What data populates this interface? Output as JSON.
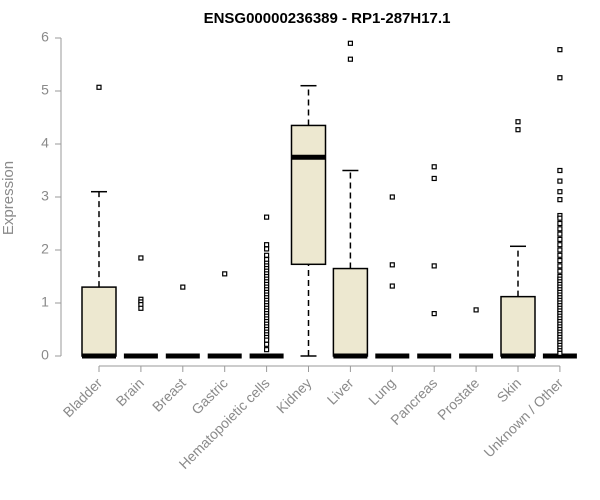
{
  "chart_data": {
    "type": "box",
    "title": "ENSG00000236389 - RP1-287H17.1",
    "ylabel": "Expression",
    "xlabel": "",
    "ylim": [
      0,
      6
    ],
    "yticks": [
      0,
      1,
      2,
      3,
      4,
      5,
      6
    ],
    "grid": false,
    "box_fill": "#ede8d0",
    "box_stroke": "#000000",
    "categories": [
      "Bladder",
      "Brain",
      "Breast",
      "Gastric",
      "Hematopoietic cells",
      "Kidney",
      "Liver",
      "Lung",
      "Pancreas",
      "Prostate",
      "Skin",
      "Unknown / Other"
    ],
    "boxes": [
      {
        "category": "Bladder",
        "whisker_low": 0,
        "q1": 0,
        "median": 0,
        "q3": 1.3,
        "whisker_high": 3.1,
        "outliers": [
          5.07
        ]
      },
      {
        "category": "Brain",
        "whisker_low": 0,
        "q1": 0,
        "median": 0,
        "q3": 0,
        "whisker_high": 0,
        "outliers": [
          1.85,
          1.07,
          1.02,
          0.97,
          0.9
        ]
      },
      {
        "category": "Breast",
        "whisker_low": 0,
        "q1": 0,
        "median": 0,
        "q3": 0,
        "whisker_high": 0,
        "outliers": [
          1.3
        ]
      },
      {
        "category": "Gastric",
        "whisker_low": 0,
        "q1": 0,
        "median": 0,
        "q3": 0,
        "whisker_high": 0,
        "outliers": [
          1.55
        ]
      },
      {
        "category": "Hematopoietic cells",
        "whisker_low": 0,
        "q1": 0,
        "median": 0,
        "q3": 0,
        "whisker_high": 0,
        "outliers": [
          2.62,
          2.1,
          2.02,
          1.9,
          1.82,
          1.75,
          1.7,
          1.65,
          1.6,
          1.55,
          1.5,
          1.45,
          1.4,
          1.35,
          1.3,
          1.25,
          1.2,
          1.15,
          1.1,
          1.05,
          1.0,
          0.95,
          0.9,
          0.85,
          0.8,
          0.75,
          0.7,
          0.65,
          0.6,
          0.55,
          0.5,
          0.45,
          0.4,
          0.35,
          0.3,
          0.22,
          0.12
        ]
      },
      {
        "category": "Kidney",
        "whisker_low": 0,
        "q1": 1.73,
        "median": 3.75,
        "q3": 4.35,
        "whisker_high": 5.1,
        "outliers": []
      },
      {
        "category": "Liver",
        "whisker_low": 0,
        "q1": 0,
        "median": 0,
        "q3": 1.65,
        "whisker_high": 3.5,
        "outliers": [
          5.9,
          5.6
        ]
      },
      {
        "category": "Lung",
        "whisker_low": 0,
        "q1": 0,
        "median": 0,
        "q3": 0,
        "whisker_high": 0,
        "outliers": [
          3.0,
          1.72,
          1.32
        ]
      },
      {
        "category": "Pancreas",
        "whisker_low": 0,
        "q1": 0,
        "median": 0,
        "q3": 0,
        "whisker_high": 0,
        "outliers": [
          3.57,
          3.35,
          1.7,
          0.8
        ]
      },
      {
        "category": "Prostate",
        "whisker_low": 0,
        "q1": 0,
        "median": 0,
        "q3": 0,
        "whisker_high": 0,
        "outliers": [
          0.87
        ]
      },
      {
        "category": "Skin",
        "whisker_low": 0,
        "q1": 0,
        "median": 0,
        "q3": 1.12,
        "whisker_high": 2.07,
        "outliers": [
          4.42,
          4.27
        ]
      },
      {
        "category": "Unknown / Other",
        "whisker_low": 0,
        "q1": 0,
        "median": 0,
        "q3": 0,
        "whisker_high": 0,
        "outliers": [
          5.78,
          5.25,
          3.5,
          3.3,
          3.1,
          2.95,
          2.65,
          2.6,
          2.5,
          2.4,
          2.3,
          2.2,
          2.1,
          2.0,
          1.9,
          1.8,
          1.7,
          1.6,
          1.5,
          1.45,
          1.4,
          1.35,
          1.3,
          1.25,
          1.2,
          1.15,
          1.1,
          1.05,
          1.0,
          0.95,
          0.9,
          0.85,
          0.8,
          0.75,
          0.7,
          0.65,
          0.6,
          0.55,
          0.5,
          0.45,
          0.4,
          0.35,
          0.3,
          0.25,
          0.2,
          0.15,
          0.1,
          0.05
        ]
      }
    ]
  }
}
